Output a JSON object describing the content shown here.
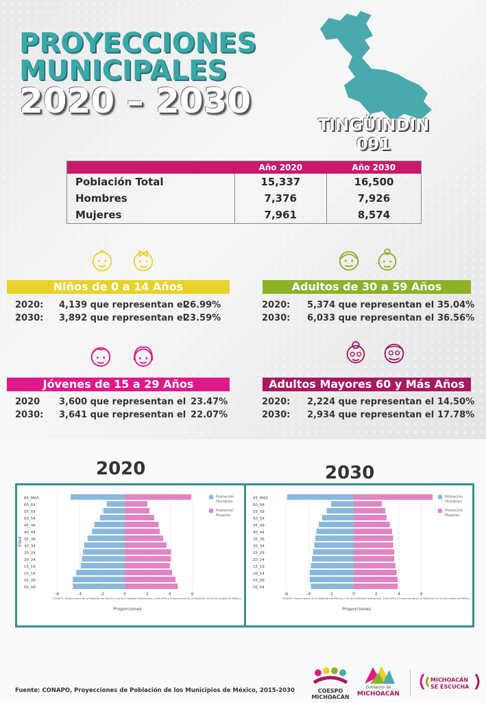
{
  "header": {
    "title_line1": "PROYECCIONES",
    "title_line2": "MUNICIPALES",
    "title_line3": "2020 – 2030"
  },
  "municipality": {
    "name": "TINGÜINDIN",
    "code": "091",
    "map_color": "#4aa9ad"
  },
  "population_table": {
    "col_2020": "Año 2020",
    "col_2030": "Año 2030",
    "rows": [
      {
        "label": "Población Total",
        "v2020": "15,337",
        "v2030": "16,500"
      },
      {
        "label": "Hombres",
        "v2020": "7,376",
        "v2030": "7,926"
      },
      {
        "label": "Mujeres",
        "v2020": "7,961",
        "v2030": "8,574"
      }
    ]
  },
  "groups": [
    {
      "title": "Niños de 0 a 14 Años",
      "color": "#e8d22c",
      "y1": "2020:",
      "c1": "4,139 que representan el",
      "p1": "26.99%",
      "y2": "2030:",
      "c2": "3,892 que representan el",
      "p2": "23.59%"
    },
    {
      "title": "Adultos de 30 a 59 Años",
      "color": "#8cb22a",
      "y1": "2020:",
      "c1": "5,374 que representan el",
      "p1": "35.04%",
      "y2": "2030:",
      "c2": "6,033 que representan el",
      "p2": "36.56%"
    },
    {
      "title": "Jóvenes de 15 a 29 Años",
      "color": "#e0198b",
      "y1": "2020",
      "c1": "3,600 que representan el",
      "p1": "23.47%",
      "y2": "2030:",
      "c2": "3,641 que representan el",
      "p2": "22.07%"
    },
    {
      "title": "Adultos Mayores  60 y Más Años",
      "color": "#a8185e",
      "y1": "2020:",
      "c1": "2,224 que representan el",
      "p1": "14.50%",
      "y2": "2030:",
      "c2": "2,934 que representan el",
      "p2": "17.78%"
    }
  ],
  "pyramid_titles": {
    "left": "2020",
    "right": "2030"
  },
  "chart_data": [
    {
      "type": "bar",
      "orientation": "horizontal",
      "categories": [
        "00_04",
        "05_09",
        "10_14",
        "15_19",
        "20_24",
        "25_29",
        "30_34",
        "35_39",
        "40_44",
        "45_49",
        "50_54",
        "55_59",
        "60_64",
        "65_MAS"
      ],
      "series": [
        {
          "name": "Población Hombres",
          "color": "#8ab8dd",
          "values": [
            -4.6,
            -4.6,
            -4.3,
            -3.9,
            -3.8,
            -3.7,
            -3.6,
            -3.3,
            -2.9,
            -2.7,
            -2.2,
            -1.9,
            -1.6,
            -4.8
          ]
        },
        {
          "name": "Población Mujeres",
          "color": "#e284c4",
          "values": [
            4.7,
            4.5,
            4.2,
            4.0,
            4.1,
            4.1,
            3.7,
            3.4,
            3.1,
            3.0,
            2.6,
            2.2,
            2.0,
            5.9
          ]
        }
      ],
      "xlabel": "Proporciones",
      "ylabel": "Edad",
      "xticks": [
        "-6",
        "-4",
        "-2",
        "0",
        "2",
        "4",
        "6"
      ],
      "xlim": [
        -6.5,
        6.5
      ],
      "note": "CONAPO, Proyecciones de la Población de México y de las Entidades Federativas, 2016-2050 y Proyecciones de la Población de los Municipios de México,"
    },
    {
      "type": "bar",
      "orientation": "horizontal",
      "categories": [
        "00_04",
        "05_09",
        "10_14",
        "15_19",
        "20_24",
        "25_29",
        "30_34",
        "35_39",
        "40_44",
        "45_49",
        "50_54",
        "55_59",
        "60_64",
        "65_MAS"
      ],
      "series": [
        {
          "name": "Población Hombres",
          "color": "#8ab8dd",
          "values": [
            -3.8,
            -3.9,
            -3.9,
            -3.8,
            -3.7,
            -3.6,
            -3.5,
            -3.4,
            -3.3,
            -3.1,
            -2.8,
            -2.4,
            -2.0,
            -5.9
          ]
        },
        {
          "name": "Población Mujeres",
          "color": "#e284c4",
          "values": [
            3.9,
            3.9,
            3.8,
            3.7,
            3.6,
            3.6,
            3.5,
            3.5,
            3.4,
            3.2,
            2.9,
            2.8,
            2.5,
            7.0
          ]
        }
      ],
      "xlabel": "Proporciones",
      "ylabel": "",
      "xticks": [
        "-6",
        "-4",
        "-2",
        "0",
        "2",
        "4",
        "6"
      ],
      "xlim": [
        -6.5,
        6.5
      ],
      "note": "CONAPO, Proyecciones de la Población de México y de las Entidades Federativas, 2016-2050 y Proyecciones de la Población de los Municipios de México,"
    }
  ],
  "footer": {
    "source": "Fuente: CONAPO, Proyecciones de Población de los Municipios de México, 2015-2030",
    "logo1": "COESPO MICHOACÁN",
    "logo2_top": "Gobierno de",
    "logo2_bottom": "MICHOACÁN",
    "logo3_top": "MICHOACÁN",
    "logo3_bottom": "SE ESCUCHA"
  }
}
